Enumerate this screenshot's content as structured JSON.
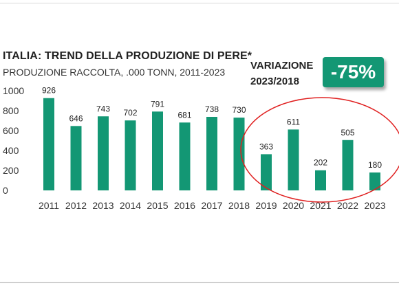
{
  "chart_data": {
    "type": "bar",
    "title": "ITALIA: TREND DELLA PRODUZIONE DI PERE*",
    "subtitle": "PRODUZIONE RACCOLTA, .000 TONN, 2011-2023",
    "categories": [
      "2011",
      "2012",
      "2013",
      "2014",
      "2015",
      "2016",
      "2017",
      "2018",
      "2019",
      "2020",
      "2021",
      "2022",
      "2023"
    ],
    "values": [
      926,
      646,
      743,
      702,
      791,
      681,
      738,
      730,
      363,
      611,
      202,
      505,
      180
    ],
    "ylim": [
      0,
      1000
    ],
    "yticks": [
      "0",
      "200",
      "400",
      "600",
      "800",
      "1000"
    ],
    "grid": false,
    "bar_color": "#139774",
    "highlight_color": "#e02020",
    "highlight_categories": [
      "2019",
      "2020",
      "2021",
      "2022",
      "2023"
    ]
  },
  "variation": {
    "label_line1": "VARIAZIONE",
    "label_line2": "2023/2018",
    "value": "-75%",
    "badge_color": "#139774"
  }
}
